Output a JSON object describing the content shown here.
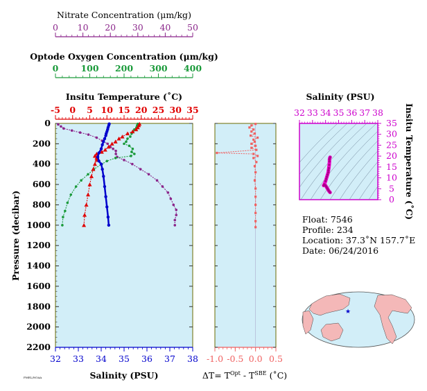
{
  "colors": {
    "nitrate": "#8a258a",
    "oxygen": "#1a9a3a",
    "temperature": "#e00000",
    "salinity": "#0000cc",
    "delta_t": "#f06060",
    "ts_axis": "#cc00cc",
    "panel_bg": "#d2eef8",
    "ts_line": "#ee00cc"
  },
  "axes": {
    "nitrate_title": "Nitrate Concentration (μm/kg)",
    "oxygen_title": "Optode Oxygen Concentration (μm/kg)",
    "temperature_title": "Insitu Temperature (˚C)",
    "pressure_title": "Pressure (decibar)",
    "salinity_title": "Salinity (PSU)",
    "ts_salinity_title": "Salinity (PSU)",
    "ts_temperature_title": "Insitu Temperature (˚C)",
    "dt_title_prefix": "ΔT= T",
    "dt_title_sup1": "Opt",
    "dt_title_mid": " - T",
    "dt_title_sup2": "SBE",
    "dt_title_suffix": " (˚C)"
  },
  "info": {
    "float": "Float:  7546",
    "profile": "Profile:  234",
    "location": "Location:  37.3˚N  157.7˚E",
    "date": "Date:  06/24/2016"
  },
  "footer_code": "PMEL/NOAA",
  "chart_data": [
    {
      "type": "line",
      "name": "profiles",
      "ylabel": "Pressure (decibar)",
      "ylim": [
        2200,
        0
      ],
      "yticks": [
        0,
        200,
        400,
        600,
        800,
        1000,
        1200,
        1400,
        1600,
        1800,
        2000,
        2200
      ],
      "axes": {
        "nitrate": {
          "xlim": [
            0,
            50
          ],
          "ticks": [
            0,
            10,
            20,
            30,
            40,
            50
          ],
          "xlabel": "Nitrate Concentration (μm/kg)"
        },
        "oxygen": {
          "xlim": [
            0,
            400
          ],
          "ticks": [
            0,
            100,
            200,
            300,
            400
          ],
          "xlabel": "Optode Oxygen Concentration (μm/kg)"
        },
        "temperature": {
          "xlim": [
            -5,
            35
          ],
          "ticks": [
            -5,
            0,
            5,
            10,
            15,
            20,
            25,
            30,
            35
          ],
          "xlabel": "Insitu Temperature (˚C)"
        },
        "salinity": {
          "xlim": [
            32,
            38
          ],
          "ticks": [
            32,
            33,
            34,
            35,
            36,
            37,
            38
          ],
          "xlabel": "Salinity (PSU)"
        }
      },
      "series": [
        {
          "axis": "nitrate",
          "points": [
            [
              1,
              10
            ],
            [
              2,
              30
            ],
            [
              3,
              50
            ],
            [
              6,
              70
            ],
            [
              9,
              90
            ],
            [
              12,
              110
            ],
            [
              15,
              140
            ],
            [
              17,
              170
            ],
            [
              19,
              200
            ],
            [
              20,
              230
            ],
            [
              21,
              250
            ],
            [
              22,
              270
            ],
            [
              22,
              300
            ],
            [
              22.5,
              330
            ],
            [
              25,
              360
            ],
            [
              28,
              400
            ],
            [
              31,
              450
            ],
            [
              34,
              500
            ],
            [
              37,
              560
            ],
            [
              39,
              620
            ],
            [
              41,
              680
            ],
            [
              42,
              740
            ],
            [
              43,
              800
            ],
            [
              44,
              850
            ],
            [
              44,
              900
            ],
            [
              43.5,
              950
            ],
            [
              43.5,
              1000
            ]
          ]
        },
        {
          "axis": "oxygen",
          "points": [
            [
              240,
              5
            ],
            [
              238,
              20
            ],
            [
              236,
              40
            ],
            [
              230,
              60
            ],
            [
              226,
              80
            ],
            [
              222,
              100
            ],
            [
              218,
              130
            ],
            [
              210,
              150
            ],
            [
              206,
              180
            ],
            [
              200,
              200
            ],
            [
              215,
              220
            ],
            [
              225,
              250
            ],
            [
              222,
              280
            ],
            [
              230,
              300
            ],
            [
              220,
              320
            ],
            [
              175,
              340
            ],
            [
              150,
              370
            ],
            [
              135,
              400
            ],
            [
              112,
              450
            ],
            [
              95,
              500
            ],
            [
              75,
              560
            ],
            [
              60,
              620
            ],
            [
              45,
              700
            ],
            [
              35,
              780
            ],
            [
              28,
              860
            ],
            [
              22,
              920
            ],
            [
              20,
              1000
            ]
          ]
        },
        {
          "axis": "temperature",
          "points": [
            [
              19.5,
              5
            ],
            [
              19.3,
              20
            ],
            [
              19,
              40
            ],
            [
              18.5,
              60
            ],
            [
              17.5,
              80
            ],
            [
              16,
              100
            ],
            [
              14.5,
              130
            ],
            [
              13.5,
              150
            ],
            [
              12.5,
              180
            ],
            [
              11.5,
              200
            ],
            [
              10.5,
              230
            ],
            [
              9.5,
              260
            ],
            [
              8.5,
              280
            ],
            [
              7,
              300
            ],
            [
              6.5,
              320
            ],
            [
              7,
              340
            ],
            [
              7,
              360
            ],
            [
              6.5,
              400
            ],
            [
              6,
              450
            ],
            [
              5.5,
              520
            ],
            [
              5,
              600
            ],
            [
              4.5,
              700
            ],
            [
              4,
              800
            ],
            [
              3.5,
              900
            ],
            [
              3.3,
              1000
            ]
          ]
        },
        {
          "axis": "salinity",
          "points": [
            [
              34.35,
              5
            ],
            [
              34.33,
              20
            ],
            [
              34.3,
              40
            ],
            [
              34.28,
              60
            ],
            [
              34.25,
              80
            ],
            [
              34.22,
              100
            ],
            [
              34.2,
              120
            ],
            [
              34.15,
              150
            ],
            [
              34.1,
              180
            ],
            [
              34.05,
              210
            ],
            [
              34.0,
              250
            ],
            [
              33.9,
              290
            ],
            [
              33.85,
              330
            ],
            [
              33.9,
              370
            ],
            [
              34.0,
              400
            ],
            [
              34.05,
              450
            ],
            [
              34.1,
              520
            ],
            [
              34.15,
              620
            ],
            [
              34.2,
              720
            ],
            [
              34.25,
              820
            ],
            [
              34.3,
              920
            ],
            [
              34.33,
              1000
            ]
          ]
        }
      ]
    },
    {
      "type": "line",
      "name": "temperature-difference",
      "xlabel": "ΔT= TOpt - TSBE (˚C)",
      "xlim": [
        -1.0,
        0.5
      ],
      "xticks": [
        -1.0,
        -0.5,
        0.0,
        0.5
      ],
      "ylim": [
        2200,
        0
      ],
      "points": [
        [
          0.0,
          5
        ],
        [
          -0.1,
          20
        ],
        [
          -0.15,
          40
        ],
        [
          -0.05,
          60
        ],
        [
          -0.1,
          80
        ],
        [
          -0.02,
          100
        ],
        [
          -0.12,
          120
        ],
        [
          0.05,
          140
        ],
        [
          -0.05,
          160
        ],
        [
          -0.02,
          180
        ],
        [
          -0.1,
          200
        ],
        [
          0.0,
          220
        ],
        [
          -0.1,
          240
        ],
        [
          0.02,
          260
        ],
        [
          -0.95,
          290
        ],
        [
          -0.05,
          300
        ],
        [
          0.05,
          320
        ],
        [
          -0.05,
          340
        ],
        [
          0.02,
          380
        ],
        [
          -0.02,
          420
        ],
        [
          0.0,
          480
        ],
        [
          -0.02,
          560
        ],
        [
          0.0,
          640
        ],
        [
          0.0,
          720
        ],
        [
          0.0,
          800
        ],
        [
          0.0,
          880
        ],
        [
          0.0,
          960
        ],
        [
          0.0,
          1020
        ]
      ]
    },
    {
      "type": "line",
      "name": "temperature-salinity",
      "xlabel": "Salinity (PSU)",
      "ylabel": "Insitu Temperature (˚C)",
      "xlim": [
        32,
        38
      ],
      "ylim": [
        0,
        35
      ],
      "xticks": [
        32,
        33,
        34,
        35,
        36,
        37,
        38
      ],
      "yticks": [
        0,
        5,
        10,
        15,
        20,
        25,
        30,
        35
      ],
      "points": [
        [
          34.35,
          3.3
        ],
        [
          34.3,
          3.6
        ],
        [
          34.25,
          4
        ],
        [
          34.2,
          4.5
        ],
        [
          34.15,
          5
        ],
        [
          34.1,
          5.5
        ],
        [
          34.05,
          6
        ],
        [
          34.0,
          6.5
        ],
        [
          33.9,
          7
        ],
        [
          33.85,
          6.5
        ],
        [
          33.9,
          7
        ],
        [
          34.0,
          8.5
        ],
        [
          34.05,
          9.5
        ],
        [
          34.1,
          10.5
        ],
        [
          34.15,
          11.5
        ],
        [
          34.2,
          12.5
        ],
        [
          34.22,
          13.5
        ],
        [
          34.25,
          14.5
        ],
        [
          34.28,
          16
        ],
        [
          34.3,
          17.5
        ],
        [
          34.3,
          18.5
        ],
        [
          34.33,
          19.3
        ],
        [
          34.35,
          19.5
        ]
      ]
    }
  ]
}
